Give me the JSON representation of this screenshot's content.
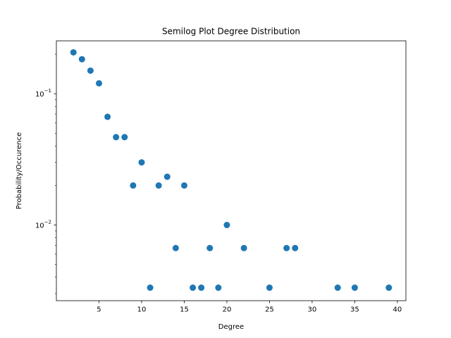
{
  "chart_data": {
    "type": "scatter",
    "title": "Semilog Plot Degree Distribution",
    "xlabel": "Degree",
    "ylabel": "Probability/Occurence",
    "xlim": [
      0,
      41
    ],
    "ylim": [
      0.00265,
      0.253
    ],
    "yscale": "log",
    "grid": false,
    "x_ticks": [
      {
        "value": 5,
        "label": "5"
      },
      {
        "value": 10,
        "label": "10"
      },
      {
        "value": 15,
        "label": "15"
      },
      {
        "value": 20,
        "label": "20"
      },
      {
        "value": 25,
        "label": "25"
      },
      {
        "value": 30,
        "label": "30"
      },
      {
        "value": 35,
        "label": "35"
      },
      {
        "value": 40,
        "label": "40"
      }
    ],
    "y_major_ticks": [
      {
        "value": 0.1,
        "base": "10",
        "exp": "−1"
      },
      {
        "value": 0.01,
        "base": "10",
        "exp": "−2"
      }
    ],
    "y_minor_ticks": [
      0.003,
      0.004,
      0.005,
      0.006,
      0.007,
      0.008,
      0.009,
      0.02,
      0.03,
      0.04,
      0.05,
      0.06,
      0.07,
      0.08,
      0.09,
      0.2
    ],
    "marker_color": "#1f77b4",
    "points": [
      {
        "x": 2,
        "y": 0.2067
      },
      {
        "x": 3,
        "y": 0.1833
      },
      {
        "x": 4,
        "y": 0.15
      },
      {
        "x": 5,
        "y": 0.12
      },
      {
        "x": 6,
        "y": 0.0667
      },
      {
        "x": 7,
        "y": 0.0467
      },
      {
        "x": 8,
        "y": 0.0467
      },
      {
        "x": 9,
        "y": 0.02
      },
      {
        "x": 10,
        "y": 0.03
      },
      {
        "x": 11,
        "y": 0.00333
      },
      {
        "x": 12,
        "y": 0.02
      },
      {
        "x": 13,
        "y": 0.0233
      },
      {
        "x": 14,
        "y": 0.00667
      },
      {
        "x": 15,
        "y": 0.02
      },
      {
        "x": 16,
        "y": 0.00333
      },
      {
        "x": 17,
        "y": 0.00333
      },
      {
        "x": 18,
        "y": 0.00667
      },
      {
        "x": 19,
        "y": 0.00333
      },
      {
        "x": 20,
        "y": 0.01
      },
      {
        "x": 22,
        "y": 0.00667
      },
      {
        "x": 25,
        "y": 0.00333
      },
      {
        "x": 27,
        "y": 0.00667
      },
      {
        "x": 28,
        "y": 0.00667
      },
      {
        "x": 33,
        "y": 0.00333
      },
      {
        "x": 35,
        "y": 0.00333
      },
      {
        "x": 39,
        "y": 0.00333
      }
    ]
  }
}
